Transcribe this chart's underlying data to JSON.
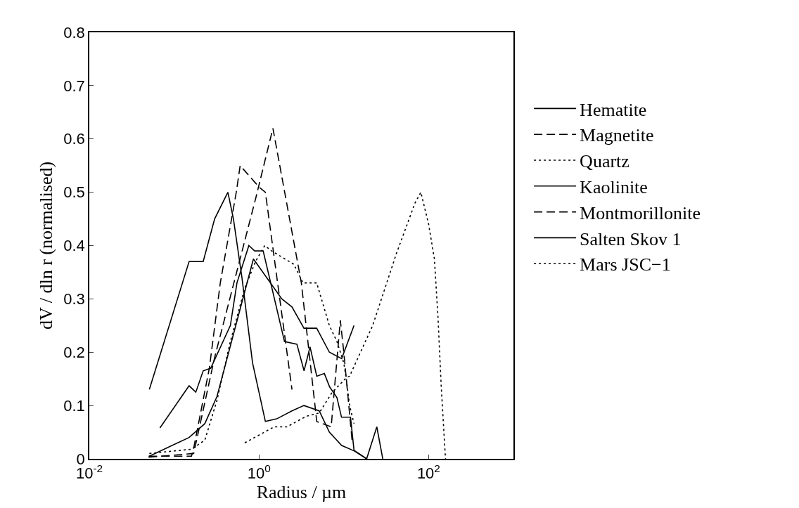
{
  "chart_data": {
    "type": "line",
    "xlabel": "Radius / µm",
    "ylabel": "dV / dln r (normalised)",
    "log": "x",
    "xlim": [
      0.01,
      1000
    ],
    "xticks": [
      {
        "value": 0.01,
        "label": "10$^{-2}$"
      },
      {
        "value": 1,
        "label": "10$^{0}$"
      },
      {
        "value": 100,
        "label": "10$^{2}$"
      }
    ],
    "ylim": [
      0,
      0.8
    ],
    "yticks": [
      0,
      0.1,
      0.2,
      0.3,
      0.4,
      0.5,
      0.6,
      0.7,
      0.8
    ],
    "grid": false,
    "legend": "right",
    "marker": "none",
    "series": [
      {
        "name": "Hematite",
        "color": "#000000",
        "line_style": "solid",
        "x": [
          0.051,
          0.15,
          0.22,
          0.3,
          0.43,
          0.5,
          0.63,
          0.84,
          1.19,
          1.62,
          2.45,
          3.39,
          5.13,
          6.76,
          9.44,
          13.2,
          18.6,
          24.5,
          28.8
        ],
        "values": [
          0.13,
          0.37,
          0.37,
          0.45,
          0.5,
          0.45,
          0.34,
          0.18,
          0.07,
          0.075,
          0.09,
          0.1,
          0.09,
          0.05,
          0.025,
          0.015,
          0,
          0.06,
          0
        ]
      },
      {
        "name": "Magnetite",
        "color": "#000000",
        "line_style": "dashed",
        "x": [
          0.05,
          0.16,
          0.17,
          0.26,
          0.35,
          0.54,
          0.6,
          1.0,
          1.19,
          2.45
        ],
        "values": [
          0.005,
          0.005,
          0.02,
          0.17,
          0.33,
          0.5,
          0.55,
          0.51,
          0.5,
          0.13
        ]
      },
      {
        "name": "Quartz",
        "color": "#000000",
        "line_style": "dotted",
        "x": [
          0.051,
          0.16,
          0.23,
          0.32,
          0.46,
          0.68,
          0.91,
          1.17,
          1.41,
          2.57,
          3.31,
          4.79,
          6.76,
          8.3,
          10,
          10.7,
          11.7,
          13.2
        ],
        "values": [
          0.01,
          0.018,
          0.035,
          0.11,
          0.22,
          0.32,
          0.37,
          0.4,
          0.39,
          0.365,
          0.33,
          0.33,
          0.25,
          0.22,
          0.18,
          0.15,
          0.1,
          0.066
        ]
      },
      {
        "name": "Kaolinite",
        "color": "#000000",
        "line_style": "solid",
        "x": [
          0.068,
          0.15,
          0.18,
          0.22,
          0.27,
          0.46,
          0.55,
          0.76,
          0.89,
          1.12,
          2.0,
          2.8,
          3.4,
          4.0,
          4.8,
          5.9,
          6.8,
          8.3,
          9.4,
          12,
          13.2,
          18.6
        ],
        "values": [
          0.058,
          0.137,
          0.125,
          0.165,
          0.17,
          0.25,
          0.33,
          0.4,
          0.39,
          0.39,
          0.22,
          0.215,
          0.165,
          0.21,
          0.155,
          0.16,
          0.135,
          0.115,
          0.078,
          0.078,
          0.016,
          0
        ]
      },
      {
        "name": "Montmorillonite",
        "color": "#000000",
        "line_style": "dashed",
        "x": [
          0.05,
          0.17,
          0.3,
          0.92,
          1.46,
          3.16,
          4.8,
          7.1,
          9.1,
          10,
          12.6
        ],
        "values": [
          0.003,
          0.01,
          0.19,
          0.49,
          0.62,
          0.33,
          0.07,
          0.06,
          0.26,
          0.2,
          0.03
        ]
      },
      {
        "name": "Salten Skov 1",
        "color": "#000000",
        "line_style": "solid",
        "x": [
          0.051,
          0.15,
          0.23,
          0.32,
          0.86,
          1.86,
          2.45,
          3.39,
          4.79,
          6.76,
          9.44,
          13.2
        ],
        "values": [
          0.005,
          0.04,
          0.066,
          0.117,
          0.375,
          0.3,
          0.285,
          0.245,
          0.245,
          0.2,
          0.188,
          0.25
        ]
      },
      {
        "name": "Mars JSC−1",
        "color": "#000000",
        "line_style": "dotted",
        "x": [
          0.68,
          1.51,
          2.14,
          3.63,
          5.13,
          7.24,
          10.7,
          11.7,
          21.9,
          41.7,
          69.2,
          81,
          100,
          117,
          129,
          141,
          158
        ],
        "values": [
          0.03,
          0.06,
          0.06,
          0.08,
          0.086,
          0.124,
          0.152,
          0.155,
          0.25,
          0.385,
          0.48,
          0.5,
          0.44,
          0.375,
          0.265,
          0.134,
          0
        ]
      }
    ]
  }
}
